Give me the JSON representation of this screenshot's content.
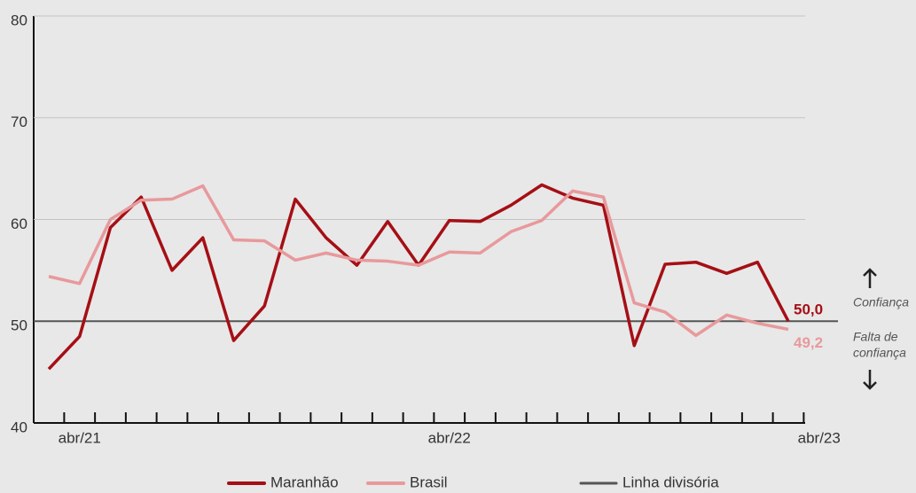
{
  "chart_data": {
    "type": "line",
    "categories": [
      null,
      "abr/21",
      null,
      null,
      null,
      null,
      null,
      null,
      null,
      null,
      null,
      null,
      null,
      "abr/22",
      null,
      null,
      null,
      null,
      null,
      null,
      null,
      null,
      null,
      null,
      null,
      "abr/23"
    ],
    "series": [
      {
        "name": "Maranhão",
        "color": "#a50f15",
        "values": [
          45.3,
          48.5,
          59.2,
          62.2,
          55.0,
          58.2,
          48.1,
          51.5,
          62.0,
          58.2,
          55.5,
          59.8,
          55.5,
          59.9,
          59.8,
          61.4,
          63.4,
          62.1,
          61.4,
          47.6,
          55.6,
          55.8,
          54.7,
          55.8,
          50.0,
          null
        ],
        "value_labels": [
          null,
          null,
          null,
          null,
          null,
          null,
          null,
          null,
          null,
          null,
          null,
          null,
          null,
          null,
          null,
          null,
          null,
          null,
          null,
          null,
          null,
          null,
          null,
          null,
          "50,0",
          null
        ]
      },
      {
        "name": "Brasil",
        "color": "#e8999c",
        "values": [
          54.4,
          53.7,
          60.0,
          61.9,
          62.0,
          63.3,
          58.0,
          57.9,
          56.0,
          56.7,
          56.0,
          55.9,
          55.5,
          56.8,
          56.7,
          58.8,
          59.9,
          62.8,
          62.2,
          51.8,
          50.9,
          48.6,
          50.6,
          49.8,
          49.2,
          null
        ],
        "value_labels": [
          null,
          null,
          null,
          null,
          null,
          null,
          null,
          null,
          null,
          null,
          null,
          null,
          null,
          null,
          null,
          null,
          null,
          null,
          null,
          null,
          null,
          null,
          null,
          null,
          "49,2",
          null
        ]
      }
    ],
    "divider": {
      "name": "Linha divisória",
      "value": 50,
      "color": "#555555"
    },
    "annotations": {
      "above": "Confiança",
      "below": [
        "Falta de",
        "confiança"
      ]
    },
    "ylim": [
      40,
      80
    ],
    "yticks": [
      40,
      50,
      60,
      70,
      80
    ],
    "grid": true
  }
}
